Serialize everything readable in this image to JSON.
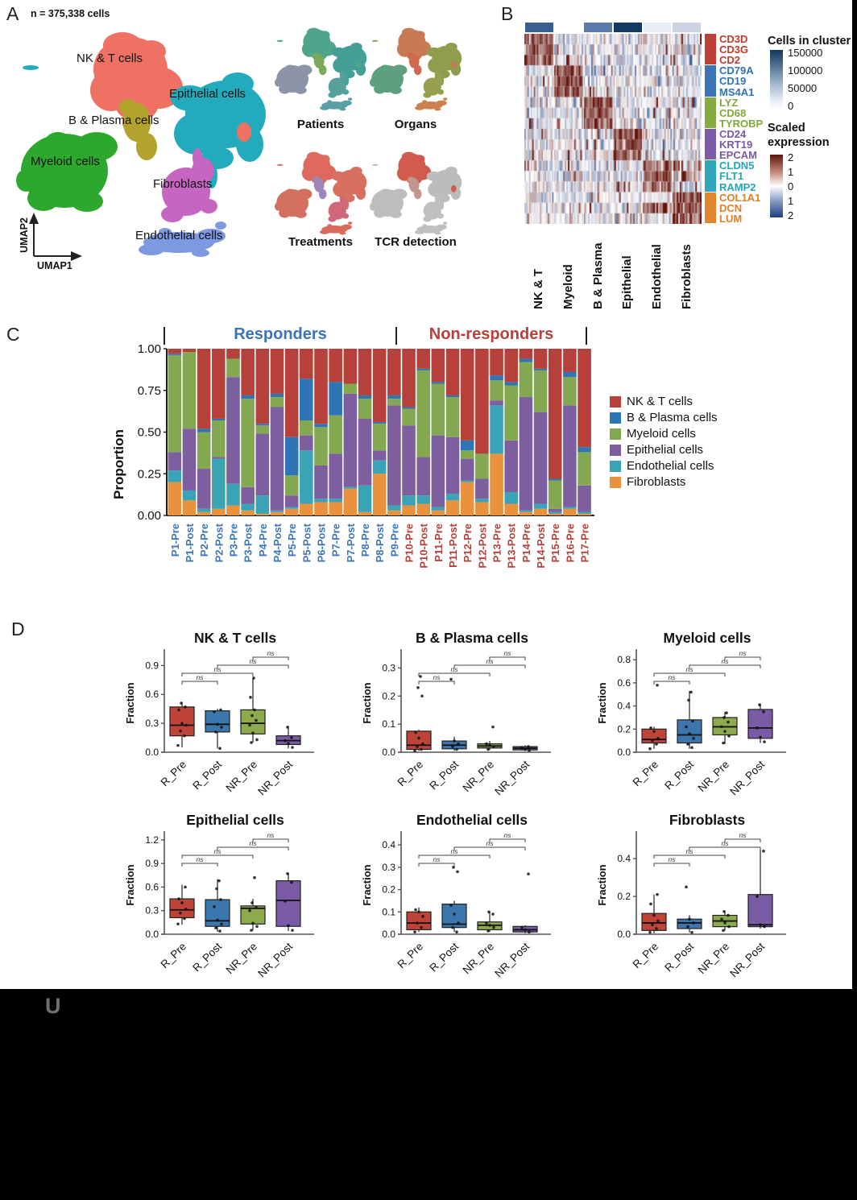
{
  "footer": {
    "watermark": "U"
  },
  "chart_data": [
    {
      "id": "umap-overview",
      "label": "A",
      "type": "scatter",
      "n_label": "n = 375,338 cells",
      "axis_x": "UMAP1",
      "axis_y": "UMAP2",
      "cluster_labels": [
        "NK & T cells",
        "Epithelial cells",
        "B & Plasma cells",
        "Myeloid cells",
        "Fibroblasts",
        "Endothelial cells"
      ],
      "clusters": [
        {
          "name": "NK & T cells",
          "color": "#ee7163"
        },
        {
          "name": "Epithelial cells",
          "color": "#23aabd"
        },
        {
          "name": "B & Plasma cells",
          "color": "#b2a32d"
        },
        {
          "name": "Myeloid cells",
          "color": "#2da82f"
        },
        {
          "name": "Fibroblasts",
          "color": "#c766c0"
        },
        {
          "name": "Endothelial cells",
          "color": "#7d99e2"
        }
      ],
      "minis": [
        {
          "label": "Patients"
        },
        {
          "label": "Organs"
        },
        {
          "label": "Treatments"
        },
        {
          "label": "TCR detection"
        }
      ]
    },
    {
      "id": "marker-heatmap",
      "label": "B",
      "type": "heatmap",
      "col_labels": [
        "NK & T",
        "Myeloid",
        "B & Plasma",
        "Epithelial",
        "Endothelial",
        "Fibroblasts"
      ],
      "annotation_colors": [
        "#3a5f8d",
        "#ffffff",
        "#5b7aa9",
        "#143a61",
        "#e9edf4",
        "#ccd4e4"
      ],
      "row_groups": [
        {
          "genes": [
            "CD3D",
            "CD3G",
            "CD2"
          ],
          "text_color": "#c13b2c",
          "bar_color": "#bd4038"
        },
        {
          "genes": [
            "CD79A",
            "CD19",
            "MS4A1"
          ],
          "text_color": "#2f72b5",
          "bar_color": "#3b74b0"
        },
        {
          "genes": [
            "LYZ",
            "CD68",
            "TYROBP"
          ],
          "text_color": "#7fa839",
          "bar_color": "#83ab3f"
        },
        {
          "genes": [
            "CD24",
            "KRT19",
            "EPCAM"
          ],
          "text_color": "#7a58a8",
          "bar_color": "#7c5ca8"
        },
        {
          "genes": [
            "CLDN5",
            "FLT1",
            "RAMP2"
          ],
          "text_color": "#23a5bb",
          "bar_color": "#2fa7b8"
        },
        {
          "genes": [
            "COL1A1",
            "DCN",
            "LUM"
          ],
          "text_color": "#e07f28",
          "bar_color": "#e2862f"
        }
      ],
      "cells_legend": {
        "title": "Cells in cluster",
        "ticks": [
          "150000",
          "100000",
          "50000",
          "0"
        ]
      },
      "expr_legend": {
        "line1": "Scaled",
        "line2": "expression",
        "ticks": [
          "2",
          "1",
          "0",
          "1",
          "2"
        ]
      }
    },
    {
      "id": "proportions",
      "label": "C",
      "type": "bar",
      "stacked": true,
      "ylabel": "Proportion",
      "yticks": [
        "1.00",
        "0.75",
        "0.50",
        "0.25",
        "0.00"
      ],
      "ylim": [
        0,
        1
      ],
      "group_headers": [
        "Responders",
        "Non-responders"
      ],
      "group_colors": {
        "R": "#3b74b8",
        "NR": "#b5413a"
      },
      "categories": [
        "P1-Pre",
        "P1-Post",
        "P2-Pre",
        "P2-Post",
        "P3-Pre",
        "P3-Post",
        "P4-Pre",
        "P4-Post",
        "P5-Pre",
        "P5-Post",
        "P6-Post",
        "P7-Pre",
        "P7-Post",
        "P8-Pre",
        "P8-Post",
        "P9-Pre",
        "P10-Pre",
        "P10-Post",
        "P11-Pre",
        "P11-Post",
        "P12-Pre",
        "P12-Post",
        "P13-Pre",
        "P13-Post",
        "P14-Pre",
        "P14-Post",
        "P15-Pre",
        "P16-Pre",
        "P17-Pre"
      ],
      "category_groups": [
        "R",
        "R",
        "R",
        "R",
        "R",
        "R",
        "R",
        "R",
        "R",
        "R",
        "R",
        "R",
        "R",
        "R",
        "R",
        "R",
        "NR",
        "NR",
        "NR",
        "NR",
        "NR",
        "NR",
        "NR",
        "NR",
        "NR",
        "NR",
        "NR",
        "NR",
        "NR"
      ],
      "series": [
        {
          "name": "Fibroblasts",
          "color": "#e8923d",
          "values": [
            0.2,
            0.09,
            0.02,
            0.04,
            0.06,
            0.03,
            0.01,
            0.02,
            0.04,
            0.07,
            0.08,
            0.08,
            0.16,
            0.02,
            0.25,
            0.03,
            0.06,
            0.07,
            0.03,
            0.09,
            0.2,
            0.08,
            0.37,
            0.07,
            0.02,
            0.04,
            0.01,
            0.04,
            0.01
          ]
        },
        {
          "name": "Endothelial cells",
          "color": "#3ba3b6",
          "values": [
            0.07,
            0.06,
            0.02,
            0.3,
            0.13,
            0.04,
            0.11,
            0.01,
            0.01,
            0.32,
            0.02,
            0.02,
            0.01,
            0.16,
            0.08,
            0.03,
            0.06,
            0.05,
            0.02,
            0.04,
            0.01,
            0.02,
            0.29,
            0.07,
            0.01,
            0.03,
            0.01,
            0.01,
            0.01
          ]
        },
        {
          "name": "Epithelial cells",
          "color": "#7d5fa0",
          "values": [
            0.11,
            0.37,
            0.24,
            0.01,
            0.64,
            0.1,
            0.37,
            0.62,
            0.07,
            0.09,
            0.2,
            0.27,
            0.56,
            0.4,
            0.06,
            0.6,
            0.42,
            0.23,
            0.43,
            0.34,
            0.13,
            0.12,
            0.03,
            0.31,
            0.68,
            0.55,
            0.02,
            0.61,
            0.16
          ]
        },
        {
          "name": "Myeloid cells",
          "color": "#84a751",
          "values": [
            0.58,
            0.46,
            0.22,
            0.22,
            0.11,
            0.53,
            0.05,
            0.06,
            0.12,
            0.09,
            0.23,
            0.23,
            0.06,
            0.12,
            0.16,
            0.04,
            0.1,
            0.52,
            0.31,
            0.24,
            0.05,
            0.15,
            0.12,
            0.33,
            0.21,
            0.25,
            0.17,
            0.17,
            0.2
          ]
        },
        {
          "name": "B & Plasma cells",
          "color": "#2e75b6",
          "values": [
            0.01,
            0.0,
            0.02,
            0.01,
            0.0,
            0.02,
            0.01,
            0.02,
            0.23,
            0.25,
            0.02,
            0.2,
            0.0,
            0.02,
            0.01,
            0.02,
            0.01,
            0.01,
            0.01,
            0.01,
            0.06,
            0.0,
            0.03,
            0.02,
            0.02,
            0.01,
            0.01,
            0.03,
            0.03
          ]
        },
        {
          "name": "NK & T cells",
          "color": "#b5413a",
          "values": [
            0.03,
            0.02,
            0.48,
            0.42,
            0.06,
            0.28,
            0.45,
            0.27,
            0.53,
            0.18,
            0.45,
            0.2,
            0.21,
            0.28,
            0.44,
            0.28,
            0.35,
            0.12,
            0.2,
            0.28,
            0.55,
            0.63,
            0.16,
            0.2,
            0.06,
            0.12,
            0.78,
            0.14,
            0.59
          ]
        }
      ],
      "legend_order": [
        "NK & T cells",
        "B & Plasma cells",
        "Myeloid cells",
        "Epithelial cells",
        "Endothelial cells",
        "Fibroblasts"
      ],
      "legend_colors": [
        "#b5413a",
        "#2e75b6",
        "#84a751",
        "#7d5fa0",
        "#3ba3b6",
        "#e8923d"
      ]
    },
    {
      "id": "fraction-boxplots",
      "label": "D",
      "type": "boxplot",
      "ylabel": "Fraction",
      "box_labels": [
        "R_Pre",
        "R_Post",
        "NR_Pre",
        "NR_Post"
      ],
      "box_colors": [
        "#bf4438",
        "#3b76ad",
        "#8dab4d",
        "#7a5ba5"
      ],
      "sig_label": "ns",
      "brackets": [
        [
          0,
          1,
          0
        ],
        [
          0,
          2,
          1
        ],
        [
          1,
          3,
          2
        ],
        [
          2,
          3,
          3
        ]
      ],
      "plots": [
        {
          "title": "NK & T cells",
          "ymax": 1.02,
          "yticks": [
            0.0,
            0.3,
            0.6,
            0.9
          ],
          "boxes": [
            {
              "lo": 0.05,
              "q1": 0.17,
              "med": 0.28,
              "q3": 0.47,
              "hi": 0.52,
              "pts": [
                0.07,
                0.17,
                0.22,
                0.28,
                0.3,
                0.44,
                0.47,
                0.51
              ]
            },
            {
              "lo": 0.04,
              "q1": 0.21,
              "med": 0.29,
              "q3": 0.43,
              "hi": 0.45,
              "pts": [
                0.04,
                0.21,
                0.26,
                0.29,
                0.42,
                0.44
              ]
            },
            {
              "lo": 0.1,
              "q1": 0.19,
              "med": 0.3,
              "q3": 0.44,
              "hi": 0.77,
              "pts": [
                0.1,
                0.13,
                0.2,
                0.28,
                0.33,
                0.38,
                0.44,
                0.57,
                0.77
              ]
            },
            {
              "lo": 0.04,
              "q1": 0.08,
              "med": 0.12,
              "q3": 0.17,
              "hi": 0.27,
              "pts": [
                0.05,
                0.09,
                0.12,
                0.15,
                0.26
              ]
            }
          ]
        },
        {
          "title": "B & Plasma cells",
          "ymax": 0.35,
          "yticks": [
            0.0,
            0.1,
            0.2,
            0.3
          ],
          "boxes": [
            {
              "lo": 0.005,
              "q1": 0.01,
              "med": 0.025,
              "q3": 0.075,
              "hi": 0.08,
              "pts": [
                0.005,
                0.01,
                0.02,
                0.03,
                0.05,
                0.07,
                0.2,
                0.23,
                0.27
              ]
            },
            {
              "lo": 0.005,
              "q1": 0.012,
              "med": 0.025,
              "q3": 0.04,
              "hi": 0.055,
              "pts": [
                0.01,
                0.02,
                0.03,
                0.04,
                0.26
              ]
            },
            {
              "lo": 0.008,
              "q1": 0.015,
              "med": 0.022,
              "q3": 0.03,
              "hi": 0.04,
              "pts": [
                0.01,
                0.02,
                0.025,
                0.03,
                0.09
              ]
            },
            {
              "lo": 0.005,
              "q1": 0.008,
              "med": 0.014,
              "q3": 0.02,
              "hi": 0.025,
              "pts": [
                0.006,
                0.01,
                0.015,
                0.02
              ]
            }
          ]
        },
        {
          "title": "Myeloid cells",
          "ymax": 0.85,
          "yticks": [
            0.0,
            0.2,
            0.4,
            0.6,
            0.8
          ],
          "boxes": [
            {
              "lo": 0.03,
              "q1": 0.08,
              "med": 0.11,
              "q3": 0.2,
              "hi": 0.22,
              "pts": [
                0.03,
                0.07,
                0.1,
                0.12,
                0.18,
                0.21,
                0.58
              ]
            },
            {
              "lo": 0.03,
              "q1": 0.08,
              "med": 0.15,
              "q3": 0.28,
              "hi": 0.53,
              "pts": [
                0.04,
                0.07,
                0.12,
                0.16,
                0.22,
                0.27,
                0.45,
                0.52
              ]
            },
            {
              "lo": 0.07,
              "q1": 0.15,
              "med": 0.22,
              "q3": 0.3,
              "hi": 0.35,
              "pts": [
                0.08,
                0.14,
                0.18,
                0.22,
                0.26,
                0.3,
                0.34
              ]
            },
            {
              "lo": 0.08,
              "q1": 0.12,
              "med": 0.21,
              "q3": 0.37,
              "hi": 0.42,
              "pts": [
                0.09,
                0.13,
                0.21,
                0.35,
                0.41
              ]
            }
          ]
        },
        {
          "title": "Epithelial cells",
          "ymax": 1.25,
          "yticks": [
            0.0,
            0.3,
            0.6,
            0.9,
            1.2
          ],
          "boxes": [
            {
              "lo": 0.12,
              "q1": 0.21,
              "med": 0.31,
              "q3": 0.45,
              "hi": 0.63,
              "pts": [
                0.13,
                0.2,
                0.27,
                0.32,
                0.4,
                0.45,
                0.6
              ]
            },
            {
              "lo": 0.03,
              "q1": 0.1,
              "med": 0.17,
              "q3": 0.44,
              "hi": 0.7,
              "pts": [
                0.04,
                0.08,
                0.13,
                0.18,
                0.35,
                0.44,
                0.58,
                0.68
              ]
            },
            {
              "lo": 0.05,
              "q1": 0.13,
              "med": 0.33,
              "q3": 0.36,
              "hi": 0.45,
              "pts": [
                0.05,
                0.1,
                0.14,
                0.3,
                0.34,
                0.4,
                0.72
              ]
            },
            {
              "lo": 0.04,
              "q1": 0.1,
              "med": 0.43,
              "q3": 0.68,
              "hi": 0.78,
              "pts": [
                0.05,
                0.11,
                0.42,
                0.66,
                0.77
              ]
            }
          ]
        },
        {
          "title": "Endothelial cells",
          "ymax": 0.44,
          "yticks": [
            0.0,
            0.1,
            0.2,
            0.3,
            0.4
          ],
          "boxes": [
            {
              "lo": 0.01,
              "q1": 0.02,
              "med": 0.05,
              "q3": 0.1,
              "hi": 0.12,
              "pts": [
                0.01,
                0.03,
                0.05,
                0.08,
                0.1,
                0.11
              ]
            },
            {
              "lo": 0.01,
              "q1": 0.03,
              "med": 0.045,
              "q3": 0.135,
              "hi": 0.15,
              "pts": [
                0.01,
                0.03,
                0.05,
                0.09,
                0.13,
                0.28,
                0.3
              ]
            },
            {
              "lo": 0.01,
              "q1": 0.02,
              "med": 0.04,
              "q3": 0.055,
              "hi": 0.1,
              "pts": [
                0.015,
                0.03,
                0.04,
                0.05,
                0.09,
                0.1
              ]
            },
            {
              "lo": 0.005,
              "q1": 0.01,
              "med": 0.02,
              "q3": 0.035,
              "hi": 0.04,
              "pts": [
                0.01,
                0.02,
                0.03,
                0.27
              ]
            }
          ]
        },
        {
          "title": "Fibroblasts",
          "ymax": 0.52,
          "yticks": [
            0.0,
            0.2,
            0.4
          ],
          "boxes": [
            {
              "lo": 0.005,
              "q1": 0.02,
              "med": 0.06,
              "q3": 0.11,
              "hi": 0.21,
              "pts": [
                0.01,
                0.03,
                0.05,
                0.07,
                0.1,
                0.16,
                0.21
              ]
            },
            {
              "lo": 0.01,
              "q1": 0.03,
              "med": 0.06,
              "q3": 0.08,
              "hi": 0.1,
              "pts": [
                0.01,
                0.04,
                0.06,
                0.08,
                0.25
              ]
            },
            {
              "lo": 0.02,
              "q1": 0.04,
              "med": 0.07,
              "q3": 0.1,
              "hi": 0.12,
              "pts": [
                0.02,
                0.04,
                0.06,
                0.08,
                0.1,
                0.12
              ]
            },
            {
              "lo": 0.03,
              "q1": 0.04,
              "med": 0.05,
              "q3": 0.21,
              "hi": 0.45,
              "pts": [
                0.04,
                0.05,
                0.2,
                0.44
              ]
            }
          ]
        }
      ]
    }
  ]
}
